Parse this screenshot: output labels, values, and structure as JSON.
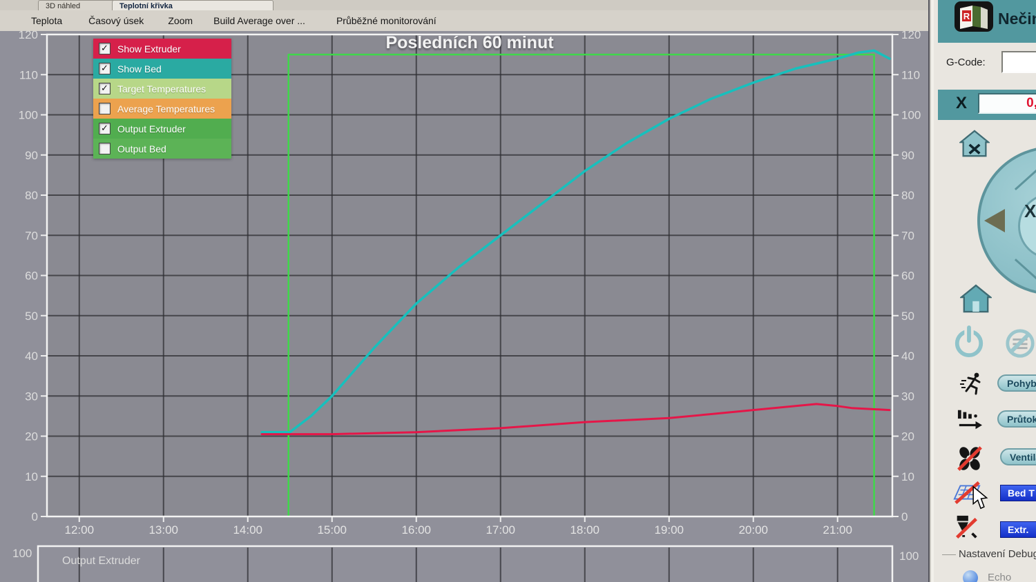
{
  "tabs": [
    {
      "label": "3D náhled",
      "active": false
    },
    {
      "label": "Teplotní křivka",
      "active": true
    }
  ],
  "menu": [
    "Teplota",
    "Časový úsek",
    "Zoom",
    "Build Average over ...",
    "Průběžné monitorování"
  ],
  "chart_data": {
    "type": "line",
    "title": "Posledních 60 minut",
    "x_ticks": [
      "12:00",
      "13:00",
      "14:00",
      "15:00",
      "16:00",
      "17:00",
      "18:00",
      "19:00",
      "20:00",
      "21:00"
    ],
    "x_domain": [
      "11:37",
      "21:39"
    ],
    "y_ticks": [
      0,
      10,
      20,
      30,
      40,
      50,
      60,
      70,
      80,
      90,
      100,
      110,
      120
    ],
    "ylim": [
      0,
      120
    ],
    "grid": true,
    "legend_position": "top-left",
    "legend": [
      {
        "label": "Show Extruder",
        "color": "#d6204a",
        "checked": true
      },
      {
        "label": "Show Bed",
        "color": "#2aaaa2",
        "checked": true
      },
      {
        "label": "Target Temperatures",
        "color": "#b7d788",
        "checked": true
      },
      {
        "label": "Average Temperatures",
        "color": "#eca24e",
        "checked": false
      },
      {
        "label": "Output Extruder",
        "color": "#51ad4f",
        "checked": true
      },
      {
        "label": "Output Bed",
        "color": "#5cb356",
        "checked": false
      }
    ],
    "series": [
      {
        "name": "Target Temperatures",
        "color": "#3fd84a",
        "points": [
          [
            "14:29",
            0
          ],
          [
            "14:29",
            115
          ],
          [
            "21:26",
            115
          ],
          [
            "21:26",
            0
          ]
        ]
      },
      {
        "name": "Show Bed",
        "color": "#17c0bd",
        "points": [
          [
            "14:10",
            21
          ],
          [
            "14:30",
            21
          ],
          [
            "14:45",
            25
          ],
          [
            "15:00",
            30
          ],
          [
            "15:30",
            42
          ],
          [
            "16:00",
            53
          ],
          [
            "16:30",
            62
          ],
          [
            "17:00",
            70
          ],
          [
            "17:30",
            78
          ],
          [
            "18:00",
            86
          ],
          [
            "18:30",
            93
          ],
          [
            "19:00",
            99
          ],
          [
            "19:30",
            104
          ],
          [
            "20:00",
            108
          ],
          [
            "20:30",
            111.5
          ],
          [
            "21:00",
            114
          ],
          [
            "21:15",
            115.5
          ],
          [
            "21:26",
            116
          ],
          [
            "21:37",
            114
          ]
        ]
      },
      {
        "name": "Show Extruder",
        "color": "#e51648",
        "points": [
          [
            "14:10",
            20.5
          ],
          [
            "15:00",
            20.5
          ],
          [
            "16:00",
            21
          ],
          [
            "17:00",
            22
          ],
          [
            "18:00",
            23.5
          ],
          [
            "19:00",
            24.5
          ],
          [
            "19:30",
            25.5
          ],
          [
            "20:00",
            26.5
          ],
          [
            "20:30",
            27.5
          ],
          [
            "20:45",
            28
          ],
          [
            "21:00",
            27.5
          ],
          [
            "21:10",
            27
          ],
          [
            "21:37",
            26.5
          ]
        ]
      }
    ]
  },
  "output_panel": {
    "title": "Output Extruder",
    "axis_label_left": "100",
    "axis_label_right": "100"
  },
  "sidebar": {
    "status": "Nečinný",
    "gcode_label": "G-Code:",
    "gcode_value": "",
    "x_axis_label": "X",
    "x_value": "0,",
    "buttons": {
      "pohyb": "Pohyb",
      "prutok": "Průtok",
      "ventilator": "Ventilátor",
      "bed": "Bed T",
      "extruder": "Extr."
    },
    "debug_label": "Nastavení Debug",
    "echo_label": "Echo"
  }
}
